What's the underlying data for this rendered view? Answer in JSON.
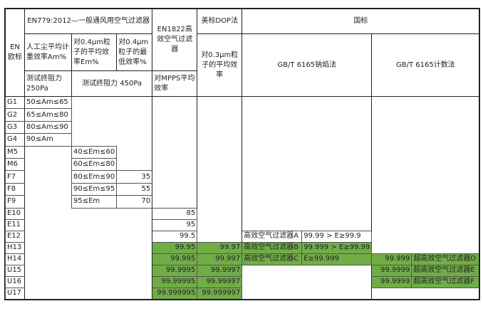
{
  "header": {
    "en": "EN欧标",
    "en779": "EN779:2012—一般通风用空气过滤器",
    "en1822": "EN1822高效空气过滤器",
    "dop": "美标DOP法",
    "gb": "国标",
    "am_desc": "人工尘平均计重效率Am%",
    "em_desc": "对0.4μm粒子的平均效率Em%",
    "min_desc": "对0.4μm粒子的最低效率%",
    "dop_desc": "对0.3μm粒子的平均效率",
    "gb_sodium": "GB/T 6165钠焰法",
    "gb_count": "GB/T 6165计数法",
    "resist250": "测试终阻力250Pa",
    "resist450": "测试终阻力 450Pa",
    "mpps": "对MPPS平均效率"
  },
  "colors": {
    "green": "#70ad47"
  },
  "rows": [
    {
      "label": "G1",
      "am": "50≤Am≤65"
    },
    {
      "label": "G2",
      "am": "65≤Am≤80"
    },
    {
      "label": "G3",
      "am": "80≤Am≤90"
    },
    {
      "label": "G4",
      "am": "90≤Am"
    },
    {
      "label": "M5",
      "em": "40≤Em≤60"
    },
    {
      "label": "M6",
      "em": "60≤Em≤80"
    },
    {
      "label": "F7",
      "em": "80≤Em≤90",
      "min": "35"
    },
    {
      "label": "F8",
      "em": "90≤Em≤95",
      "min": "55"
    },
    {
      "label": "F9",
      "em": "95≤Em",
      "min": "70"
    },
    {
      "label": "E10",
      "en1822": "85"
    },
    {
      "label": "E11",
      "en1822": "95"
    },
    {
      "label": "E12",
      "en1822": "99.5",
      "gbn_name": "高效空气过滤器A",
      "gbn_val": "99.99 > E≥99.9"
    },
    {
      "label": "H13",
      "en1822": "99.95",
      "dop": "99.97",
      "gbn_name": "高效空气过滤器B",
      "gbn_val": "99.999 > E≥99.99"
    },
    {
      "label": "H14",
      "en1822": "99.995",
      "dop": "99.997",
      "gbn_name": "高效空气过滤器C",
      "gbn_val": "E≥99.999",
      "gbc_val": "99.999",
      "gbc_name": "超高效空气过滤器D"
    },
    {
      "label": "U15",
      "en1822": "99.9995",
      "dop": "99.9997",
      "gbc_val": "99.9999",
      "gbc_name": "超高效空气过滤器E"
    },
    {
      "label": "U16",
      "en1822": "99.99995",
      "dop": "99.99997",
      "gbc_val": "99.9999",
      "gbc_name": "超高效空气过滤器F"
    },
    {
      "label": "U17",
      "en1822": "99.999995",
      "dop": "99.999997"
    }
  ]
}
